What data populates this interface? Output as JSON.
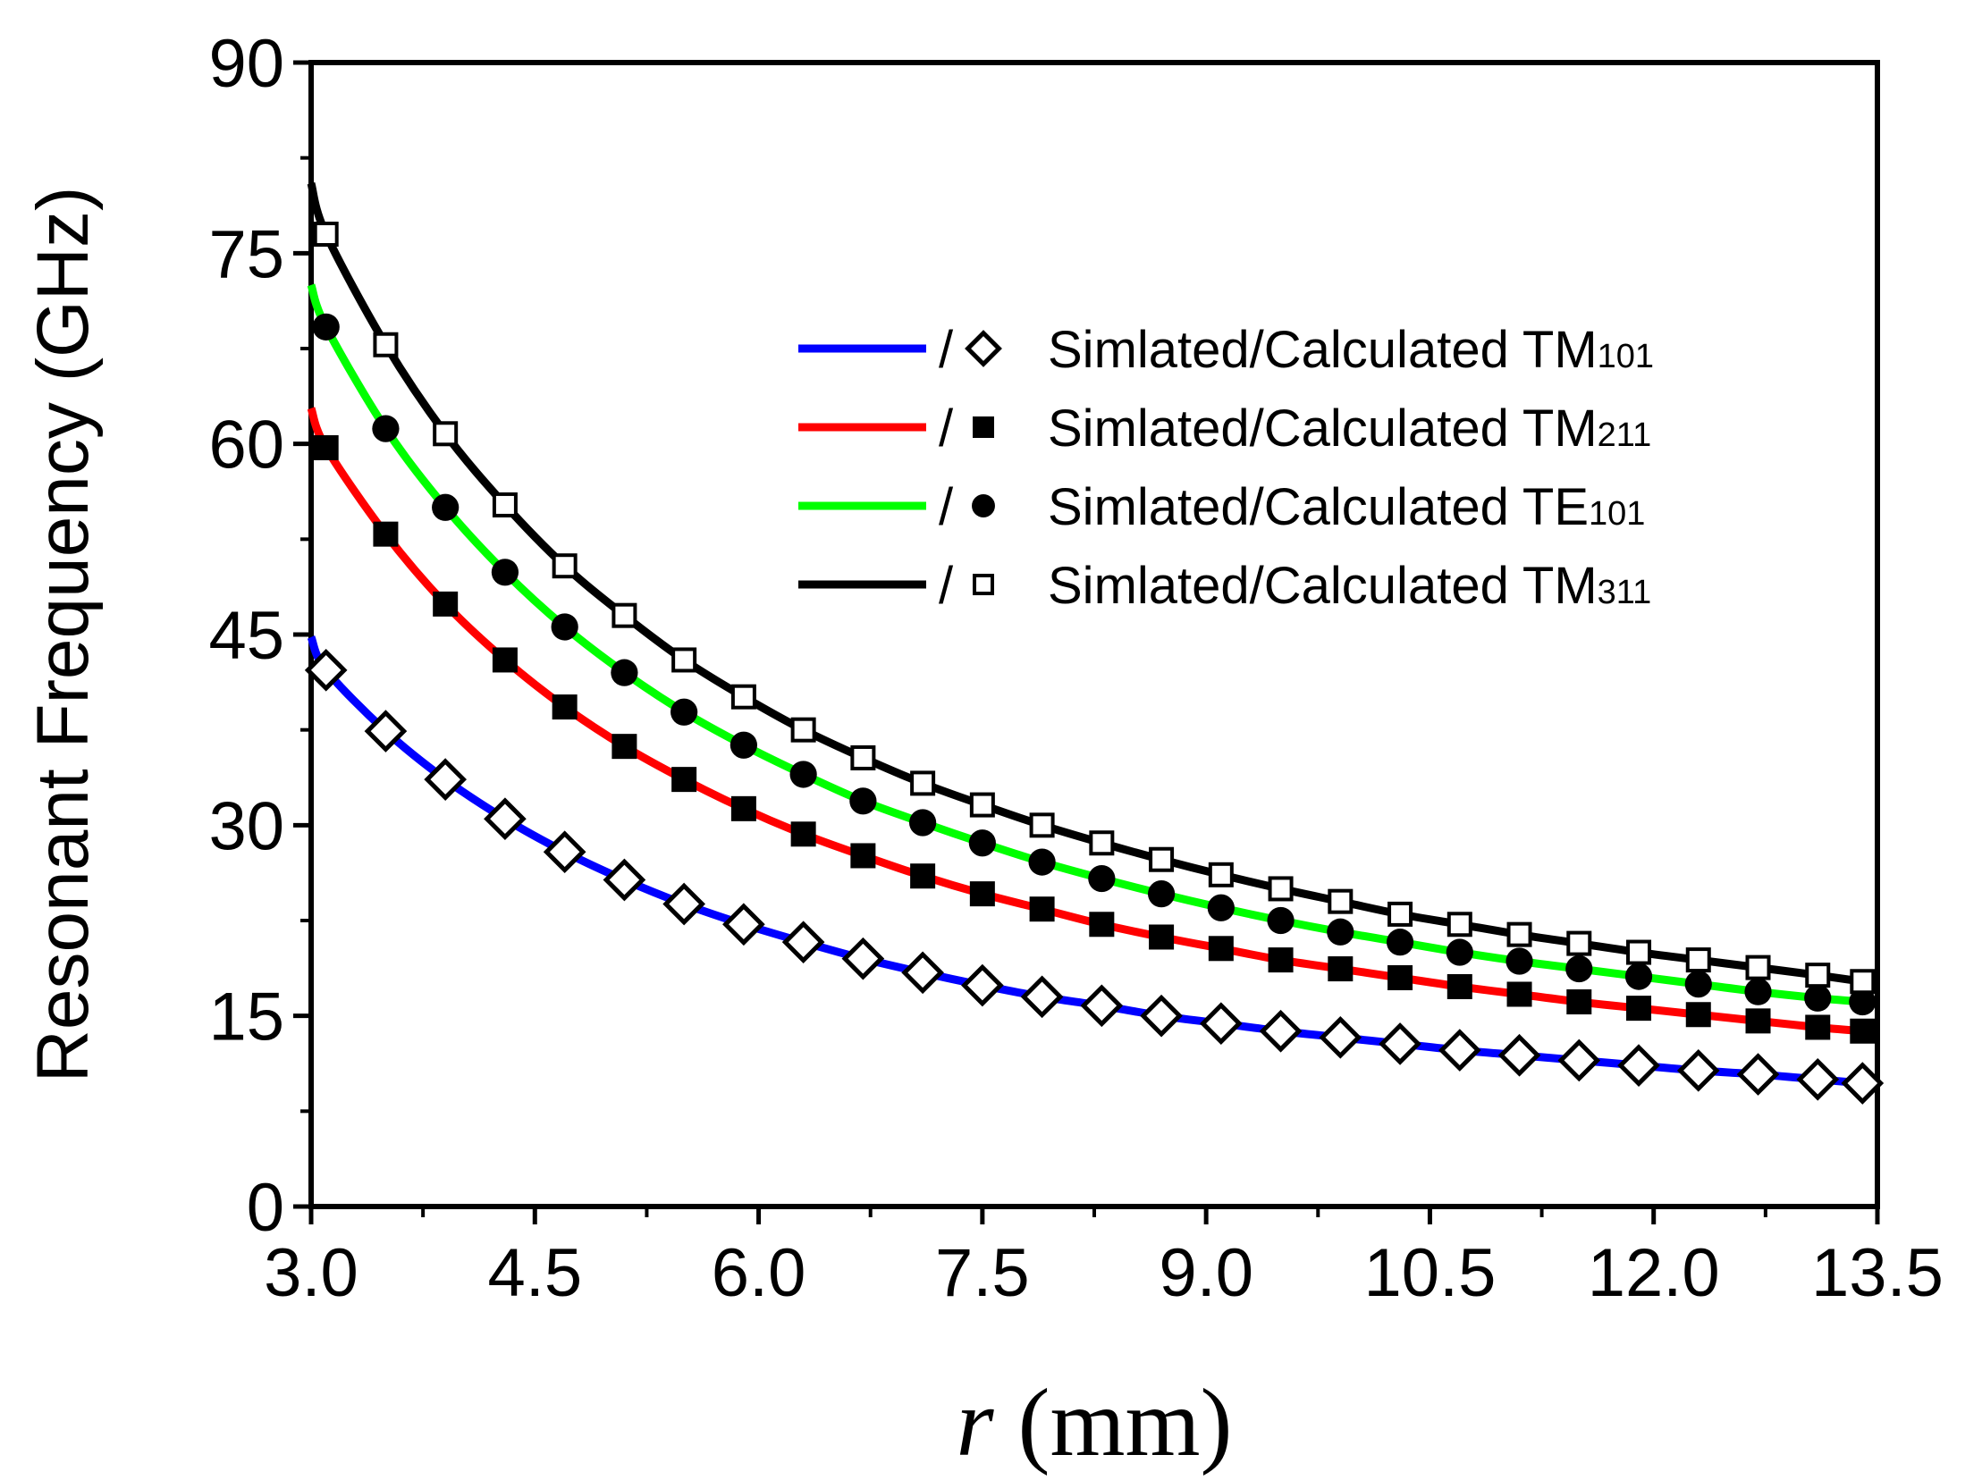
{
  "chart_data": {
    "type": "line",
    "title": "",
    "xlabel": "r",
    "xlabel_unit": " (mm)",
    "ylabel": "Resonant Frequency (GHz)",
    "xlim": [
      3.0,
      13.5
    ],
    "ylim": [
      0,
      90
    ],
    "x_ticks": [
      "3.0",
      "4.5",
      "6.0",
      "7.5",
      "9.0",
      "10.5",
      "12.0",
      "13.5"
    ],
    "y_ticks": [
      "0",
      "15",
      "30",
      "45",
      "60",
      "75",
      "90"
    ],
    "grid": false,
    "legend_position": "top-right",
    "x_points": [
      3.1,
      3.5,
      3.9,
      4.3,
      4.7,
      5.1,
      5.5,
      5.9,
      6.3,
      6.7,
      7.1,
      7.5,
      7.9,
      8.3,
      8.7,
      9.1,
      9.5,
      9.9,
      10.3,
      10.7,
      11.1,
      11.5,
      11.9,
      12.3,
      12.7,
      13.1,
      13.4
    ],
    "series": [
      {
        "name_main": "Simlated/Calculated TM",
        "name_sub": "101",
        "line_color": "#0000ff",
        "marker": "diamond-open",
        "curve_start": [
          3.0,
          44.8
        ],
        "values": [
          42.2,
          37.4,
          33.6,
          30.5,
          27.9,
          25.7,
          23.8,
          22.2,
          20.8,
          19.5,
          18.4,
          17.4,
          16.5,
          15.8,
          15.0,
          14.4,
          13.8,
          13.3,
          12.8,
          12.3,
          11.9,
          11.5,
          11.1,
          10.7,
          10.4,
          10.0,
          9.7
        ]
      },
      {
        "name_main": "Simlated/Calculated TM",
        "name_sub": "211",
        "line_color": "#ff0000",
        "marker": "square-filled",
        "curve_start": [
          3.0,
          62.8
        ],
        "values": [
          59.7,
          52.9,
          47.4,
          43.0,
          39.3,
          36.2,
          33.6,
          31.3,
          29.3,
          27.6,
          26.0,
          24.6,
          23.4,
          22.2,
          21.2,
          20.3,
          19.4,
          18.7,
          18.0,
          17.3,
          16.7,
          16.1,
          15.6,
          15.1,
          14.6,
          14.1,
          13.8
        ]
      },
      {
        "name_main": "Simlated/Calculated TE",
        "name_sub": "101",
        "line_color": "#00ff00",
        "marker": "circle-filled",
        "curve_start": [
          3.0,
          72.5
        ],
        "values": [
          69.2,
          61.2,
          55.0,
          49.9,
          45.6,
          42.0,
          38.9,
          36.3,
          34.0,
          31.9,
          30.2,
          28.6,
          27.1,
          25.8,
          24.6,
          23.5,
          22.5,
          21.6,
          20.8,
          20.0,
          19.3,
          18.7,
          18.1,
          17.5,
          16.9,
          16.4,
          16.1
        ]
      },
      {
        "name_main": "Simlated/Calculated TM",
        "name_sub": "311",
        "line_color": "#000000",
        "marker": "square-open",
        "curve_start": [
          3.0,
          80.5
        ],
        "values": [
          76.5,
          67.8,
          60.8,
          55.2,
          50.4,
          46.5,
          43.0,
          40.1,
          37.5,
          35.3,
          33.3,
          31.6,
          30.0,
          28.6,
          27.3,
          26.1,
          25.0,
          24.0,
          23.0,
          22.2,
          21.4,
          20.7,
          20.0,
          19.4,
          18.8,
          18.2,
          17.7
        ]
      }
    ],
    "legend_separator": "/"
  }
}
